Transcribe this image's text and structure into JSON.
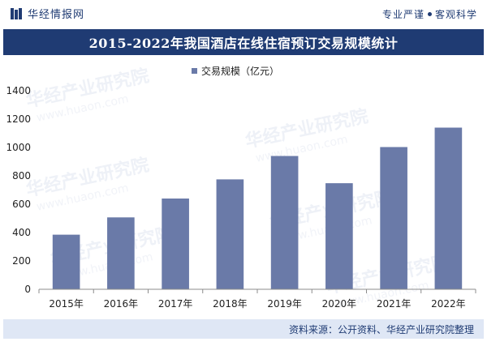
{
  "header": {
    "brand": "华经情报网",
    "slogan_left": "专业严谨",
    "slogan_right": "客观科学"
  },
  "colors": {
    "brand_navy": "#1f3b73",
    "bar": "#6a7aa8",
    "source_bg": "#dfe7f5"
  },
  "watermark": {
    "text": "华经产业研究院",
    "url": "www.huaon.com"
  },
  "footer": {
    "source": "资料来源：公开资料、华经产业研究院整理"
  },
  "chart_data": {
    "type": "bar",
    "title": "2015-2022年我国酒店在线住宿预订交易规模统计",
    "categories": [
      "2015年",
      "2016年",
      "2017年",
      "2018年",
      "2019年",
      "2020年",
      "2021年",
      "2022年"
    ],
    "series": [
      {
        "name": "交易规模（亿元）",
        "values": [
          385,
          507,
          640,
          775,
          940,
          748,
          1003,
          1140
        ]
      }
    ],
    "xlabel": "",
    "ylabel": "",
    "ylim": [
      0,
      1400
    ],
    "yticks": [
      0,
      200,
      400,
      600,
      800,
      1000,
      1200,
      1400
    ],
    "grid": false,
    "legend": "top-center"
  }
}
